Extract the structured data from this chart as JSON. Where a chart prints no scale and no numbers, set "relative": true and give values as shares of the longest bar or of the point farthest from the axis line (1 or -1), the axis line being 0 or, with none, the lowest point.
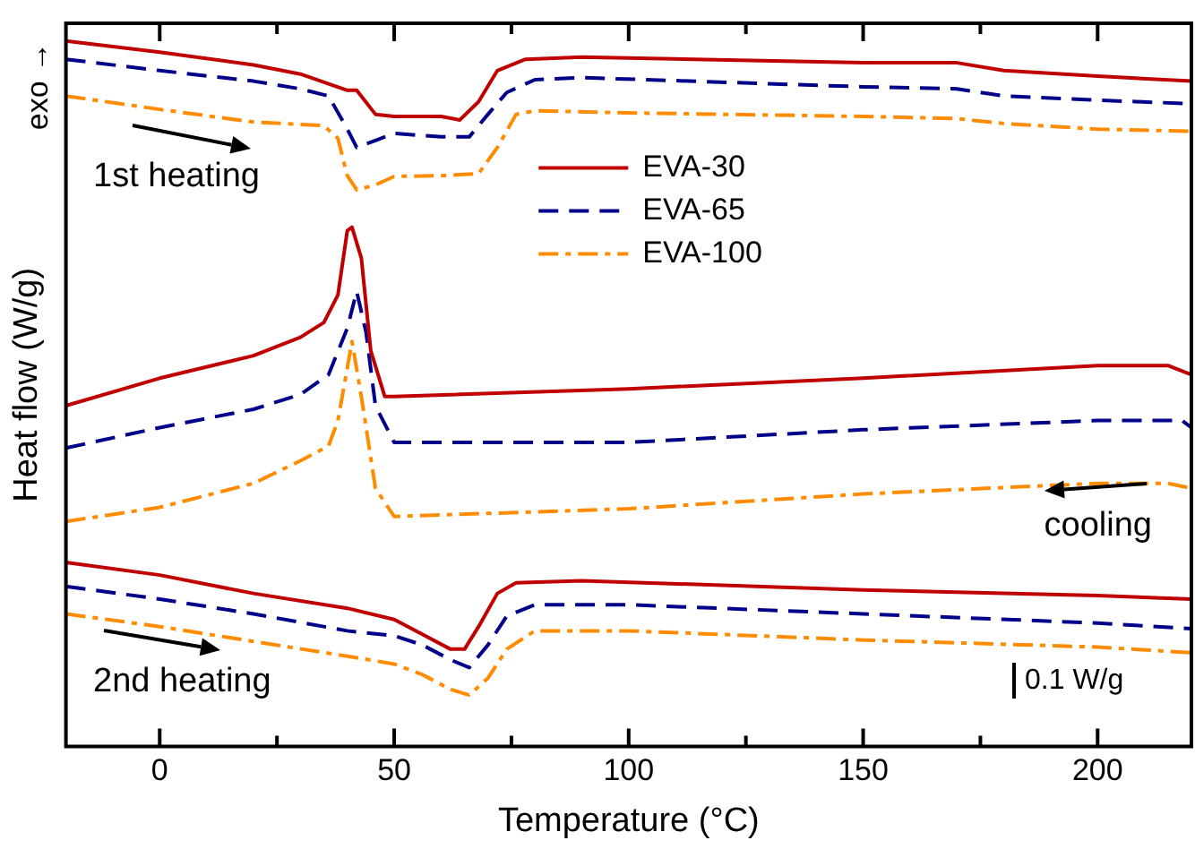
{
  "chart_data": {
    "type": "line",
    "relative": true,
    "xlabel": "Temperature (°C)",
    "ylabel": "Heat flow (W/g)",
    "xlim": [
      -20,
      220
    ],
    "xticks": [
      0,
      {
        "value": 25,
        "label": null
      },
      50,
      {
        "value": 75,
        "label": null
      },
      100,
      {
        "value": 125,
        "label": null
      },
      150,
      {
        "value": 175,
        "label": null
      },
      200
    ],
    "legend": "top",
    "grid": false,
    "marker": "none",
    "annotations": [
      "exo →",
      "1st heating",
      "cooling",
      "2nd heating",
      "0.1 W/g"
    ],
    "series": [
      {
        "name": "EVA-30",
        "color": "#c00000",
        "line_style": "solid",
        "x": [
          -20,
          0,
          20,
          30,
          40,
          42,
          46,
          50,
          60,
          64,
          68,
          72,
          78,
          90,
          150,
          170,
          180,
          200,
          220
        ],
        "values": [
          1.0,
          0.984,
          0.966,
          0.953,
          0.93,
          0.93,
          0.896,
          0.893,
          0.893,
          0.888,
          0.914,
          0.958,
          0.974,
          0.977,
          0.969,
          0.969,
          0.958,
          0.95,
          0.943
        ]
      },
      {
        "name": "EVA-65",
        "color": "#00008b",
        "line_style": "dashed",
        "x": [
          -20,
          0,
          20,
          30,
          36,
          40,
          42,
          46,
          50,
          60,
          66,
          70,
          74,
          80,
          90,
          150,
          170,
          180,
          200,
          220
        ],
        "values": [
          0.974,
          0.958,
          0.943,
          0.932,
          0.922,
          0.875,
          0.849,
          0.859,
          0.869,
          0.864,
          0.864,
          0.896,
          0.927,
          0.945,
          0.948,
          0.935,
          0.932,
          0.922,
          0.916,
          0.911
        ]
      },
      {
        "name": "EVA-100",
        "color": "#ff8c00",
        "line_style": "dashdot",
        "x": [
          -20,
          0,
          20,
          35,
          38,
          40,
          42,
          46,
          50,
          60,
          68,
          72,
          76,
          80,
          100,
          150,
          170,
          180,
          200,
          220
        ],
        "values": [
          0.922,
          0.903,
          0.885,
          0.88,
          0.862,
          0.809,
          0.789,
          0.796,
          0.808,
          0.809,
          0.812,
          0.849,
          0.896,
          0.901,
          0.898,
          0.893,
          0.89,
          0.883,
          0.875,
          0.872
        ]
      },
      {
        "color": "#c00000",
        "line_style": "solid",
        "x": [
          -20,
          0,
          20,
          30,
          35,
          38,
          40,
          41,
          43,
          45,
          48,
          50,
          100,
          150,
          200,
          215,
          220
        ],
        "values": [
          0.483,
          0.522,
          0.554,
          0.58,
          0.601,
          0.64,
          0.731,
          0.736,
          0.692,
          0.561,
          0.496,
          0.496,
          0.507,
          0.522,
          0.54,
          0.54,
          0.527
        ]
      },
      {
        "color": "#00008b",
        "line_style": "dashed",
        "x": [
          -20,
          0,
          20,
          30,
          36,
          40,
          42,
          44,
          46,
          50,
          100,
          150,
          200,
          218,
          220
        ],
        "values": [
          0.423,
          0.452,
          0.478,
          0.499,
          0.527,
          0.593,
          0.645,
          0.587,
          0.483,
          0.431,
          0.431,
          0.449,
          0.462,
          0.462,
          0.452
        ]
      },
      {
        "color": "#ff8c00",
        "line_style": "dashdot",
        "x": [
          -20,
          0,
          20,
          30,
          36,
          38,
          41,
          43,
          46,
          50,
          100,
          150,
          200,
          215,
          220
        ],
        "values": [
          0.319,
          0.339,
          0.373,
          0.405,
          0.426,
          0.462,
          0.574,
          0.496,
          0.366,
          0.326,
          0.337,
          0.358,
          0.373,
          0.373,
          0.366
        ]
      },
      {
        "color": "#c00000",
        "line_style": "solid",
        "x": [
          -20,
          0,
          20,
          40,
          50,
          56,
          62,
          65,
          68,
          72,
          76,
          90,
          150,
          200,
          220
        ],
        "values": [
          0.261,
          0.243,
          0.217,
          0.196,
          0.18,
          0.159,
          0.138,
          0.138,
          0.17,
          0.217,
          0.232,
          0.235,
          0.222,
          0.214,
          0.209
        ]
      },
      {
        "color": "#00008b",
        "line_style": "dashed",
        "x": [
          -20,
          0,
          20,
          40,
          50,
          56,
          62,
          66,
          70,
          74,
          80,
          100,
          150,
          200,
          220
        ],
        "values": [
          0.227,
          0.209,
          0.188,
          0.164,
          0.157,
          0.144,
          0.123,
          0.112,
          0.144,
          0.185,
          0.201,
          0.201,
          0.188,
          0.175,
          0.167
        ]
      },
      {
        "color": "#ff8c00",
        "line_style": "dashdot",
        "x": [
          -20,
          0,
          20,
          40,
          50,
          56,
          62,
          66,
          70,
          74,
          80,
          100,
          150,
          200,
          220
        ],
        "values": [
          0.188,
          0.17,
          0.149,
          0.128,
          0.117,
          0.102,
          0.081,
          0.073,
          0.097,
          0.138,
          0.164,
          0.164,
          0.151,
          0.141,
          0.133
        ]
      }
    ]
  }
}
